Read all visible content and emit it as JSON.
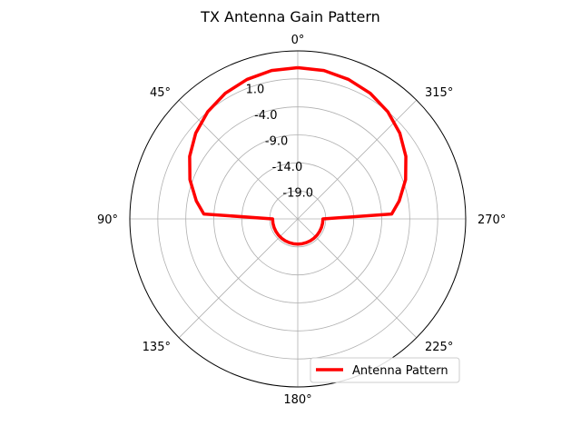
{
  "chart_data": {
    "type": "line",
    "projection": "polar",
    "title": "TX Antenna Gain Pattern",
    "theta_zero_location": "top",
    "theta_direction": "counterclockwise",
    "theta_tick_labels": [
      "0°",
      "45°",
      "90°",
      "135°",
      "180°",
      "225°",
      "270°",
      "315°"
    ],
    "theta_tick_values_deg": [
      0,
      45,
      90,
      135,
      180,
      225,
      270,
      315
    ],
    "r_tick_labels": [
      "-19.0",
      "-14.0",
      "-9.0",
      "-4.0",
      "1.0"
    ],
    "r_tick_values": [
      -19,
      -14,
      -9,
      -4,
      1
    ],
    "rlim": [
      -24,
      6
    ],
    "grid": true,
    "legend_position": "lower right",
    "series": [
      {
        "name": "Antenna Pattern",
        "color": "#ff0000",
        "theta_deg": [
          0,
          10,
          20,
          30,
          40,
          50,
          60,
          70,
          80,
          87,
          90,
          100,
          110,
          120,
          130,
          140,
          150,
          160,
          170,
          180,
          190,
          200,
          210,
          220,
          230,
          240,
          250,
          260,
          270,
          273,
          280,
          290,
          300,
          310,
          320,
          330,
          340,
          350,
          360
        ],
        "r": [
          3.0,
          2.9,
          2.5,
          1.9,
          1.0,
          -0.2,
          -1.7,
          -3.5,
          -5.6,
          -7.2,
          -19.5,
          -19.5,
          -19.5,
          -19.5,
          -19.5,
          -19.5,
          -19.5,
          -19.5,
          -19.5,
          -19.5,
          -19.5,
          -19.5,
          -19.5,
          -19.5,
          -19.5,
          -19.5,
          -19.5,
          -19.5,
          -19.5,
          -7.2,
          -5.6,
          -3.5,
          -1.7,
          -0.2,
          1.0,
          1.9,
          2.5,
          2.9,
          3.0
        ]
      }
    ]
  }
}
